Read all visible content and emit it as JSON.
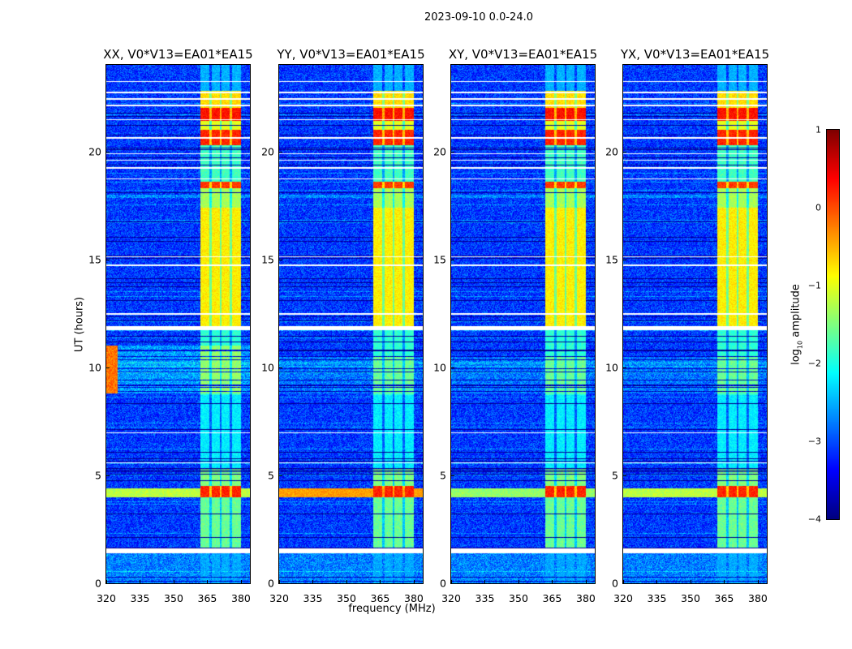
{
  "chart_data": {
    "type": "heatmap",
    "title": "2023-09-10 0.0-24.0",
    "xlabel": "frequency (MHz)",
    "ylabel": "UT (hours)",
    "xlim": [
      320,
      384
    ],
    "ylim": [
      0,
      24
    ],
    "xticks": [
      "320",
      "335",
      "350",
      "365",
      "380"
    ],
    "xtick_values": [
      320,
      335,
      350,
      365,
      380
    ],
    "yticks": [
      "0",
      "5",
      "10",
      "15",
      "20"
    ],
    "ytick_values": [
      0,
      5,
      10,
      15,
      20
    ],
    "panels": [
      {
        "title": "XX, V0*V13=EA01*EA15",
        "pol": "XX",
        "lowfreq_rfi": true,
        "wideband_4h": -1.2
      },
      {
        "title": "YY, V0*V13=EA01*EA15",
        "pol": "YY",
        "lowfreq_rfi": false,
        "wideband_4h": -0.4
      },
      {
        "title": "XY, V0*V13=EA01*EA15",
        "pol": "XY",
        "lowfreq_rfi": false,
        "wideband_4h": -1.4
      },
      {
        "title": "YX, V0*V13=EA01*EA15",
        "pol": "YX",
        "lowfreq_rfi": false,
        "wideband_4h": -1.2
      }
    ],
    "background_log_amplitude": -3.1,
    "rfi_band_mhz": [
      362,
      380
    ],
    "rfi_channel_gaps_mhz": [
      366.5,
      371,
      375.5
    ],
    "rfi_band_levels": [
      {
        "from": 0,
        "to": 1.4,
        "level": -2.6
      },
      {
        "from": 1.6,
        "to": 4.0,
        "level": -1.6
      },
      {
        "from": 4.0,
        "to": 4.5,
        "level": 0.2
      },
      {
        "from": 4.5,
        "to": 5.3,
        "level": -1.5
      },
      {
        "from": 5.3,
        "to": 8.7,
        "level": -2.2
      },
      {
        "from": 8.7,
        "to": 11.7,
        "level": -1.9
      },
      {
        "from": 11.9,
        "to": 17.4,
        "level": -0.8
      },
      {
        "from": 17.4,
        "to": 18.3,
        "level": -1.3
      },
      {
        "from": 18.3,
        "to": 18.6,
        "level": 0.1
      },
      {
        "from": 18.6,
        "to": 20.3,
        "level": -1.8
      },
      {
        "from": 20.3,
        "to": 21.0,
        "level": 0.2
      },
      {
        "from": 21.0,
        "to": 21.4,
        "level": -1.0
      },
      {
        "from": 21.4,
        "to": 22.0,
        "level": 0.3
      },
      {
        "from": 22.0,
        "to": 22.8,
        "level": -0.7
      },
      {
        "from": 22.8,
        "to": 24.0,
        "level": -2.5
      }
    ],
    "flagged_hours": [
      [
        1.4,
        1.6
      ],
      [
        11.7,
        11.9
      ],
      [
        5.55,
        5.6
      ],
      [
        6.95,
        7.0
      ],
      [
        12.45,
        12.5
      ],
      [
        14.7,
        14.75
      ],
      [
        15.1,
        15.15
      ],
      [
        18.7,
        18.75
      ],
      [
        19.2,
        19.25
      ],
      [
        19.55,
        19.6
      ],
      [
        19.85,
        19.9
      ],
      [
        20.6,
        20.65
      ],
      [
        21.45,
        21.5
      ],
      [
        22.1,
        22.15
      ],
      [
        22.4,
        22.45
      ],
      [
        22.7,
        22.75
      ],
      [
        23.2,
        23.25
      ]
    ],
    "colorbar": {
      "label_prefix": "log",
      "label_sub": "10",
      "label_suffix": " amplitude",
      "range": [
        -4,
        1
      ],
      "ticks": [
        "1",
        "0",
        "−1",
        "−2",
        "−3",
        "−4"
      ],
      "tick_values": [
        1,
        0,
        -1,
        -2,
        -3,
        -4
      ],
      "colormap": "jet"
    }
  }
}
